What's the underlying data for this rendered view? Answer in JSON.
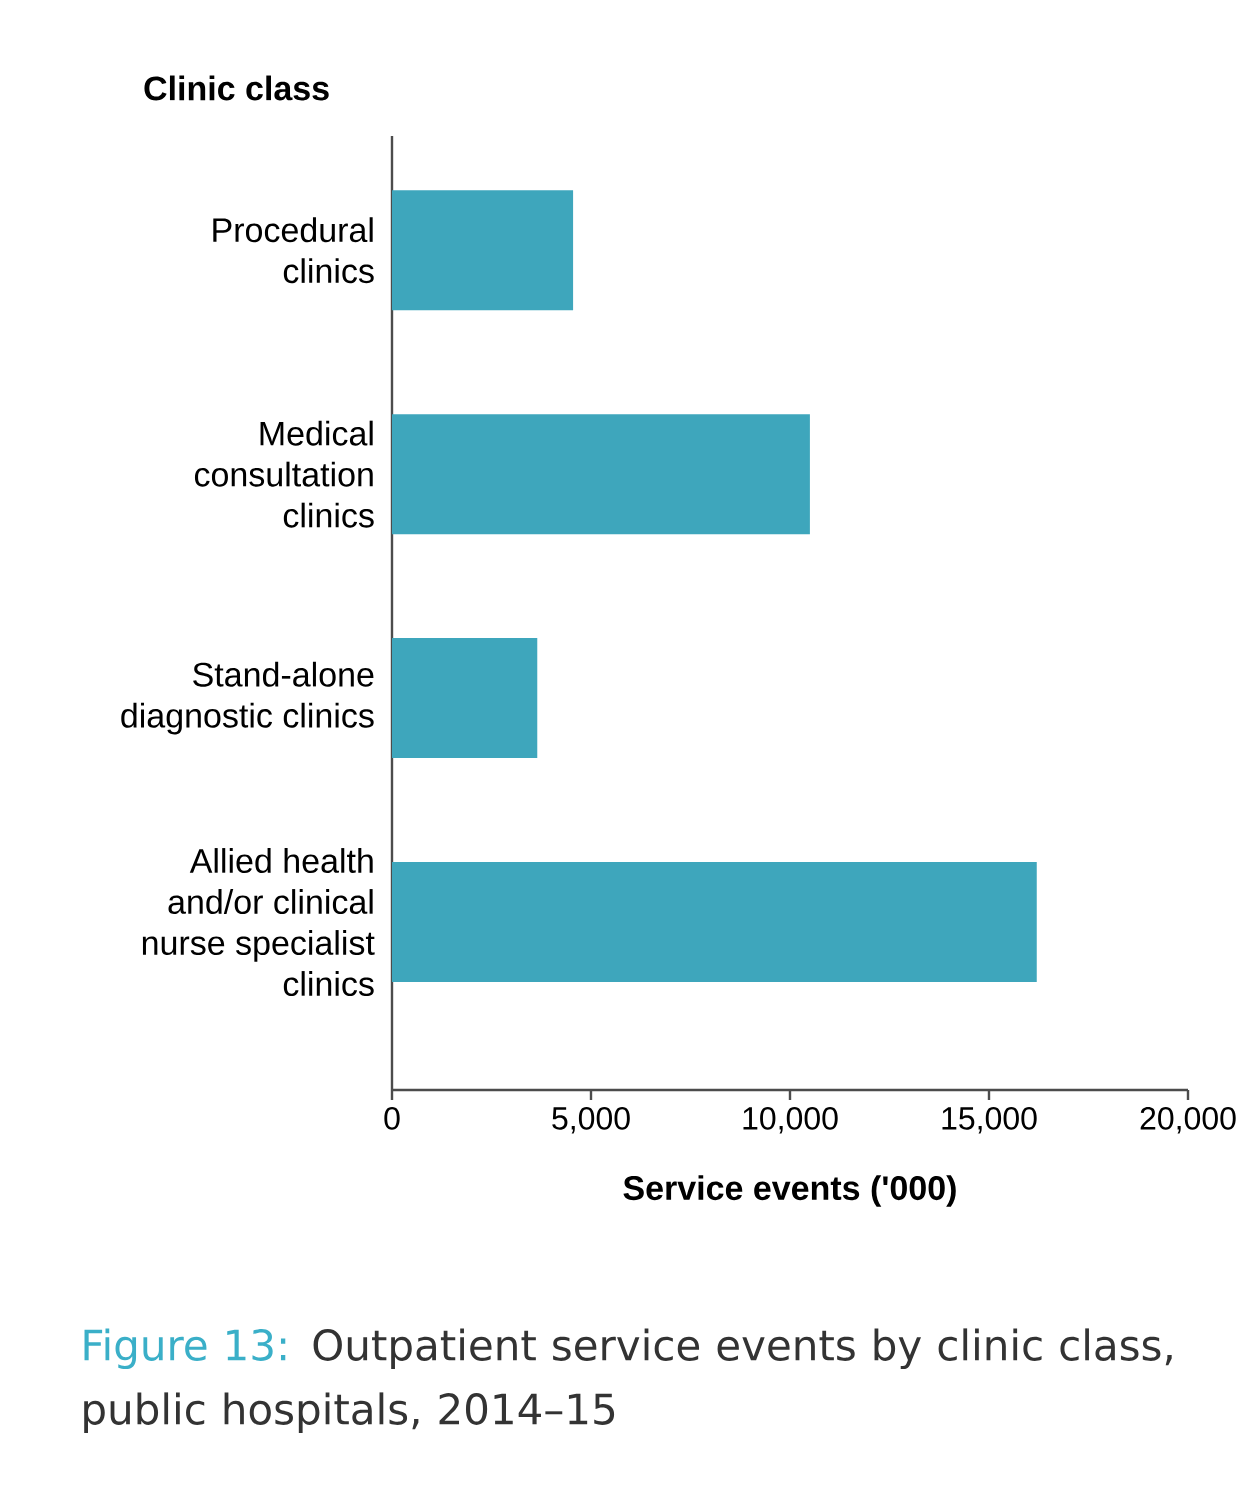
{
  "chart_data": {
    "type": "bar",
    "orientation": "horizontal",
    "ylabel": "Clinic class",
    "xlabel": "Service events ('000)",
    "title": "Outpatient service events by clinic class, public hospitals, 2014–15",
    "annotations": [
      "Figure 13:"
    ],
    "categories": [
      "Procedural clinics",
      "Medical consultation clinics",
      "Stand-alone diagnostic clinics",
      "Allied health and/or clinical nurse specialist clinics"
    ],
    "values": [
      4550,
      10500,
      3650,
      16200
    ],
    "color": "#3ea6bc",
    "xlim": [
      0,
      20000
    ],
    "xticks": [
      0,
      {
        "value": 5000,
        "label": "5,000"
      },
      {
        "value": 10000,
        "label": "10,000"
      },
      {
        "value": 15000,
        "label": "15,000"
      },
      {
        "value": 20000,
        "label": "20,000"
      }
    ],
    "grid": false
  }
}
